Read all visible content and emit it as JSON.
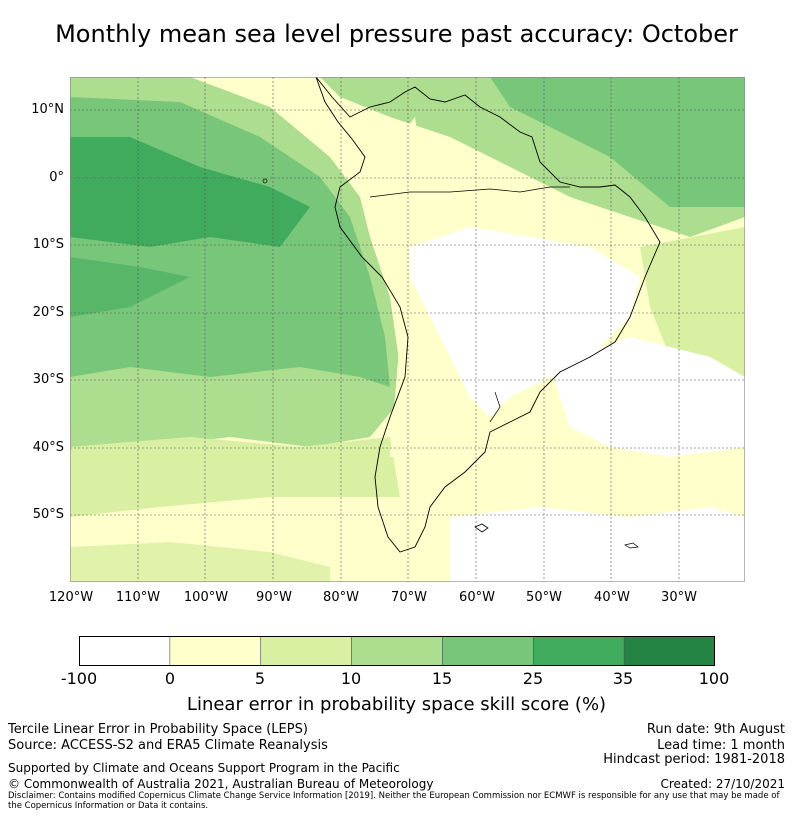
{
  "title": "Monthly mean sea level pressure past accuracy: October",
  "map": {
    "lat_labels": [
      "10°N",
      "0°",
      "10°S",
      "20°S",
      "30°S",
      "40°S",
      "50°S"
    ],
    "lon_labels": [
      "120°W",
      "110°W",
      "100°W",
      "90°W",
      "80°W",
      "70°W",
      "60°W",
      "50°W",
      "40°W",
      "30°W"
    ],
    "region": "South America and surrounding oceans",
    "colors": {
      "c_-100_0": "#ffffff",
      "c_0_5": "#ffffcc",
      "c_5_10": "#d9f0a3",
      "c_10_15": "#addd8e",
      "c_15_25": "#78c679",
      "c_25_35": "#41ab5d",
      "c_35_100": "#238443"
    }
  },
  "colorbar": {
    "ticks": [
      "-100",
      "0",
      "5",
      "10",
      "15",
      "25",
      "35",
      "100"
    ],
    "colors": [
      "#ffffff",
      "#ffffcc",
      "#d9f0a3",
      "#addd8e",
      "#78c679",
      "#41ab5d",
      "#238443"
    ],
    "label": "Linear error in probability space skill score (%)"
  },
  "footer": {
    "line1": "Tercile Linear Error in Probability Space (LEPS)",
    "line2": "Source: ACCESS-S2 and ERA5 Climate Reanalysis",
    "support": "Supported by Climate and Oceans Support Program in the Pacific",
    "copyright": "© Commonwealth of Australia 2021, Australian Bureau of Meteorology",
    "run_date": "Run date: 9th August",
    "lead_time": "Lead time: 1 month",
    "hindcast": "Hindcast period: 1981-2018",
    "created": "Created: 27/10/2021",
    "disclaimer": "Disclaimer: Contains modified Copernicus Climate Change Service Information [2019]. Neither the European Commission nor ECMWF is responsible for any use that may be made of the Copernicus Information or Data it contains."
  }
}
